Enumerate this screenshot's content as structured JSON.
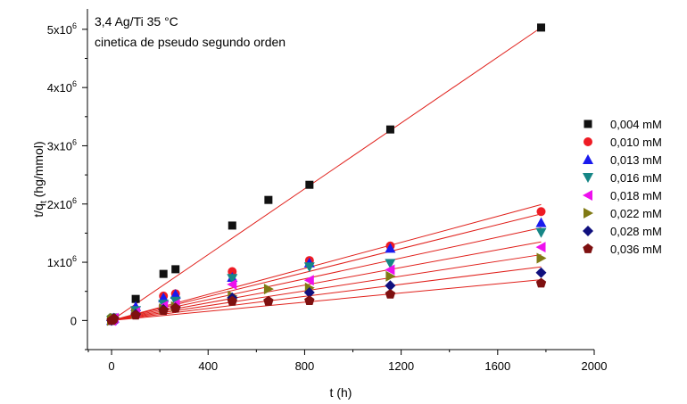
{
  "chart_data": {
    "type": "scatter",
    "annotations": [
      "3,4 Ag/Ti 35 °C",
      "cinetica de pseudo segundo orden"
    ],
    "xlabel": "t (h)",
    "ylabel_main": "t/q",
    "ylabel_sub": "t",
    "ylabel_rest": " (hg/mmol)",
    "xlim": [
      -100,
      2000
    ],
    "ylim": [
      -500000,
      5350000
    ],
    "x_ticks": [
      0,
      400,
      800,
      1200,
      1600,
      2000
    ],
    "x_tick_labels": [
      "0",
      "400",
      "800",
      "1200",
      "1600",
      "2000"
    ],
    "y_ticks": [
      0,
      1000000,
      2000000,
      3000000,
      4000000,
      5000000
    ],
    "y_tick_labels": [
      {
        "base": "0",
        "exp": ""
      },
      {
        "base": "1x10",
        "exp": "6"
      },
      {
        "base": "2x10",
        "exp": "6"
      },
      {
        "base": "3x10",
        "exp": "6"
      },
      {
        "base": "4x10",
        "exp": "6"
      },
      {
        "base": "5x10",
        "exp": "6"
      }
    ],
    "fit_line_color": "#e0201b",
    "legend_position": "right",
    "grid": false,
    "series": [
      {
        "name": "0,004 mM",
        "color": "#111111",
        "marker": "square",
        "x": [
          0,
          5,
          10,
          100,
          215,
          265,
          500,
          650,
          820,
          1155,
          1780
        ],
        "y": [
          0,
          30000,
          50000,
          370000,
          800000,
          880000,
          1630000,
          2070000,
          2330000,
          3280000,
          5030000
        ],
        "fit": [
          [
            0,
            0
          ],
          [
            1780,
            5030000
          ]
        ]
      },
      {
        "name": "0,010 mM",
        "color": "#ee1b24",
        "marker": "circle",
        "x": [
          0,
          5,
          10,
          100,
          215,
          265,
          500,
          820,
          1155,
          1780
        ],
        "y": [
          0,
          20000,
          40000,
          180000,
          420000,
          460000,
          840000,
          1030000,
          1280000,
          1870000
        ],
        "fit": [
          [
            0,
            0
          ],
          [
            1780,
            1990000
          ]
        ]
      },
      {
        "name": "0,013 mM",
        "color": "#1a1aee",
        "marker": "triangle-up",
        "x": [
          0,
          5,
          10,
          100,
          215,
          265,
          500,
          820,
          1155,
          1780
        ],
        "y": [
          0,
          20000,
          40000,
          240000,
          390000,
          450000,
          740000,
          990000,
          1240000,
          1680000
        ],
        "fit": [
          [
            0,
            0
          ],
          [
            1780,
            1830000
          ]
        ]
      },
      {
        "name": "0,016 mM",
        "color": "#168686",
        "marker": "triangle-down",
        "x": [
          0,
          5,
          10,
          100,
          215,
          265,
          500,
          820,
          1155,
          1780
        ],
        "y": [
          0,
          20000,
          40000,
          170000,
          280000,
          330000,
          720000,
          920000,
          980000,
          1510000
        ],
        "fit": [
          [
            0,
            0
          ],
          [
            1780,
            1590000
          ]
        ]
      },
      {
        "name": "0,018 mM",
        "color": "#ee10ee",
        "marker": "triangle-left",
        "x": [
          0,
          5,
          10,
          100,
          215,
          265,
          500,
          820,
          1155,
          1780
        ],
        "y": [
          0,
          20000,
          40000,
          140000,
          250000,
          280000,
          620000,
          690000,
          870000,
          1260000
        ],
        "fit": [
          [
            0,
            0
          ],
          [
            1780,
            1350000
          ]
        ]
      },
      {
        "name": "0,022 mM",
        "color": "#807a14",
        "marker": "triangle-right",
        "x": [
          0,
          5,
          10,
          100,
          215,
          265,
          500,
          650,
          820,
          1155,
          1780
        ],
        "y": [
          0,
          20000,
          40000,
          120000,
          200000,
          240000,
          420000,
          540000,
          560000,
          760000,
          1070000
        ],
        "fit": [
          [
            0,
            0
          ],
          [
            1780,
            1130000
          ]
        ]
      },
      {
        "name": "0,028 mM",
        "color": "#10107e",
        "marker": "diamond",
        "x": [
          0,
          5,
          10,
          100,
          215,
          265,
          500,
          820,
          1155,
          1780
        ],
        "y": [
          0,
          20000,
          40000,
          110000,
          190000,
          220000,
          390000,
          480000,
          600000,
          820000
        ],
        "fit": [
          [
            0,
            0
          ],
          [
            1780,
            920000
          ]
        ]
      },
      {
        "name": "0,036 mM",
        "color": "#7e1010",
        "marker": "pentagon",
        "x": [
          0,
          5,
          10,
          100,
          215,
          265,
          500,
          650,
          820,
          1155,
          1780
        ],
        "y": [
          0,
          15000,
          30000,
          90000,
          170000,
          210000,
          330000,
          330000,
          340000,
          450000,
          640000
        ],
        "fit": [
          [
            0,
            0
          ],
          [
            1780,
            700000
          ]
        ]
      }
    ]
  }
}
